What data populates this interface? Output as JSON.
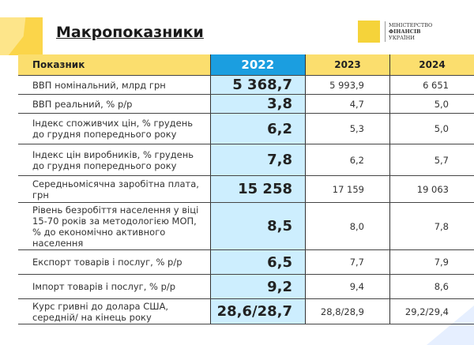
{
  "title": "Макропоказники",
  "logo": {
    "line1": "МІНІСТЕРСТВО",
    "line2": "ФІНАНСІВ",
    "line3": "УКРАЇНИ"
  },
  "table": {
    "headers": [
      "Показник",
      "2022",
      "2023",
      "2024"
    ],
    "rows": [
      {
        "label": "ВВП номінальний, млрд грн",
        "v2022": "5 368,7",
        "v2023": "5 993,9",
        "v2024": "6 651"
      },
      {
        "label": "ВВП реальний,  % р/р",
        "v2022": "3,8",
        "v2023": "4,7",
        "v2024": "5,0"
      },
      {
        "label": "Індекс споживчих цін, % грудень до грудня попереднього року",
        "v2022": "6,2",
        "v2023": "5,3",
        "v2024": "5,0"
      },
      {
        "label": "Індекс цін виробників, % грудень до грудня попереднього року",
        "v2022": "7,8",
        "v2023": "6,2",
        "v2024": "5,7"
      },
      {
        "label": "Середньомісячна заробітна плата, грн",
        "v2022": "15 258",
        "v2023": "17 159",
        "v2024": "19 063"
      },
      {
        "label": "Рівень безробіття населення у віці 15-70 років за методологією МОП, % до економічно активного населення",
        "v2022": "8,5",
        "v2023": "8,0",
        "v2024": "7,8"
      },
      {
        "label": "Експорт товарів і послуг, % р/р",
        "v2022": "6,5",
        "v2023": "7,7",
        "v2024": "7,9"
      },
      {
        "label": "Імпорт товарів і послуг, % р/р",
        "v2022": "9,2",
        "v2023": "9,4",
        "v2024": "8,6"
      },
      {
        "label": "Курс гривні до долара США, середній/ на кінець року",
        "v2022": "28,6/28,7",
        "v2023": "28,8/28,9",
        "v2024": "29,2/29,4"
      }
    ]
  },
  "colors": {
    "header": "#fbde6e",
    "highlight_header": "#1b9ee0",
    "highlight_cells": "#cdeefe"
  }
}
